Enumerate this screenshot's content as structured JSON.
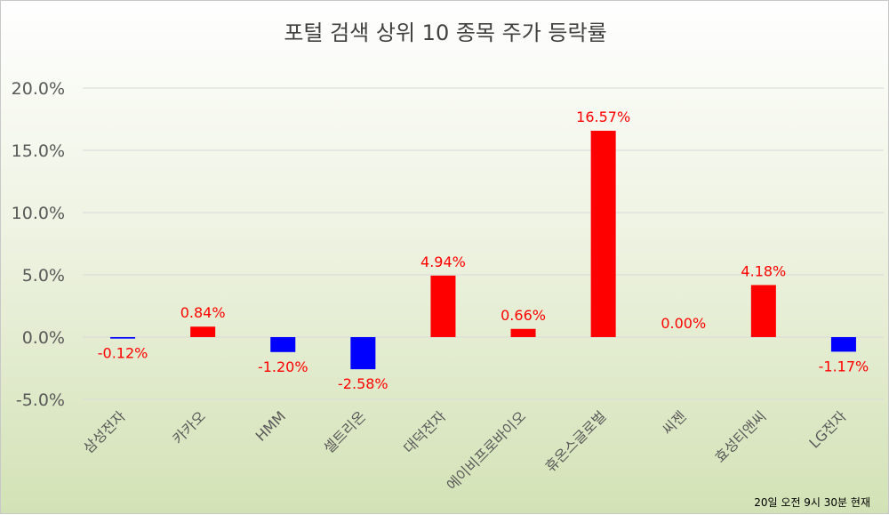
{
  "chart_data": {
    "type": "bar",
    "title": "포털 검색 상위 10 종목 주가 등락률",
    "categories": [
      "삼성전자",
      "카카오",
      "HMM",
      "셀트리온",
      "대덕전자",
      "에이비프로바이오",
      "휴온스글로벌",
      "씨젠",
      "효성티앤씨",
      "LG전자"
    ],
    "values": [
      -0.12,
      0.84,
      -1.2,
      -2.58,
      4.94,
      0.66,
      16.57,
      0.0,
      4.18,
      -1.17
    ],
    "data_labels": [
      "-0.12%",
      "0.84%",
      "-1.20%",
      "-2.58%",
      "4.94%",
      "0.66%",
      "16.57%",
      "0.00%",
      "4.18%",
      "-1.17%"
    ],
    "ylim": [
      -5,
      20
    ],
    "yticks": [
      20,
      15,
      10,
      5,
      0,
      -5
    ],
    "ytick_labels": [
      "20.0%",
      "15.0%",
      "10.0%",
      "5.0%",
      "0.0%",
      "-5.0%"
    ],
    "xlabel": "",
    "ylabel": "",
    "grid": true,
    "legend": "none",
    "colors": {
      "positive": "#ff0000",
      "negative": "#0000ff",
      "label": "#ff0000",
      "grid": "#d9d9d9"
    },
    "footnote": "20일 오전 9시 30분 현재"
  }
}
